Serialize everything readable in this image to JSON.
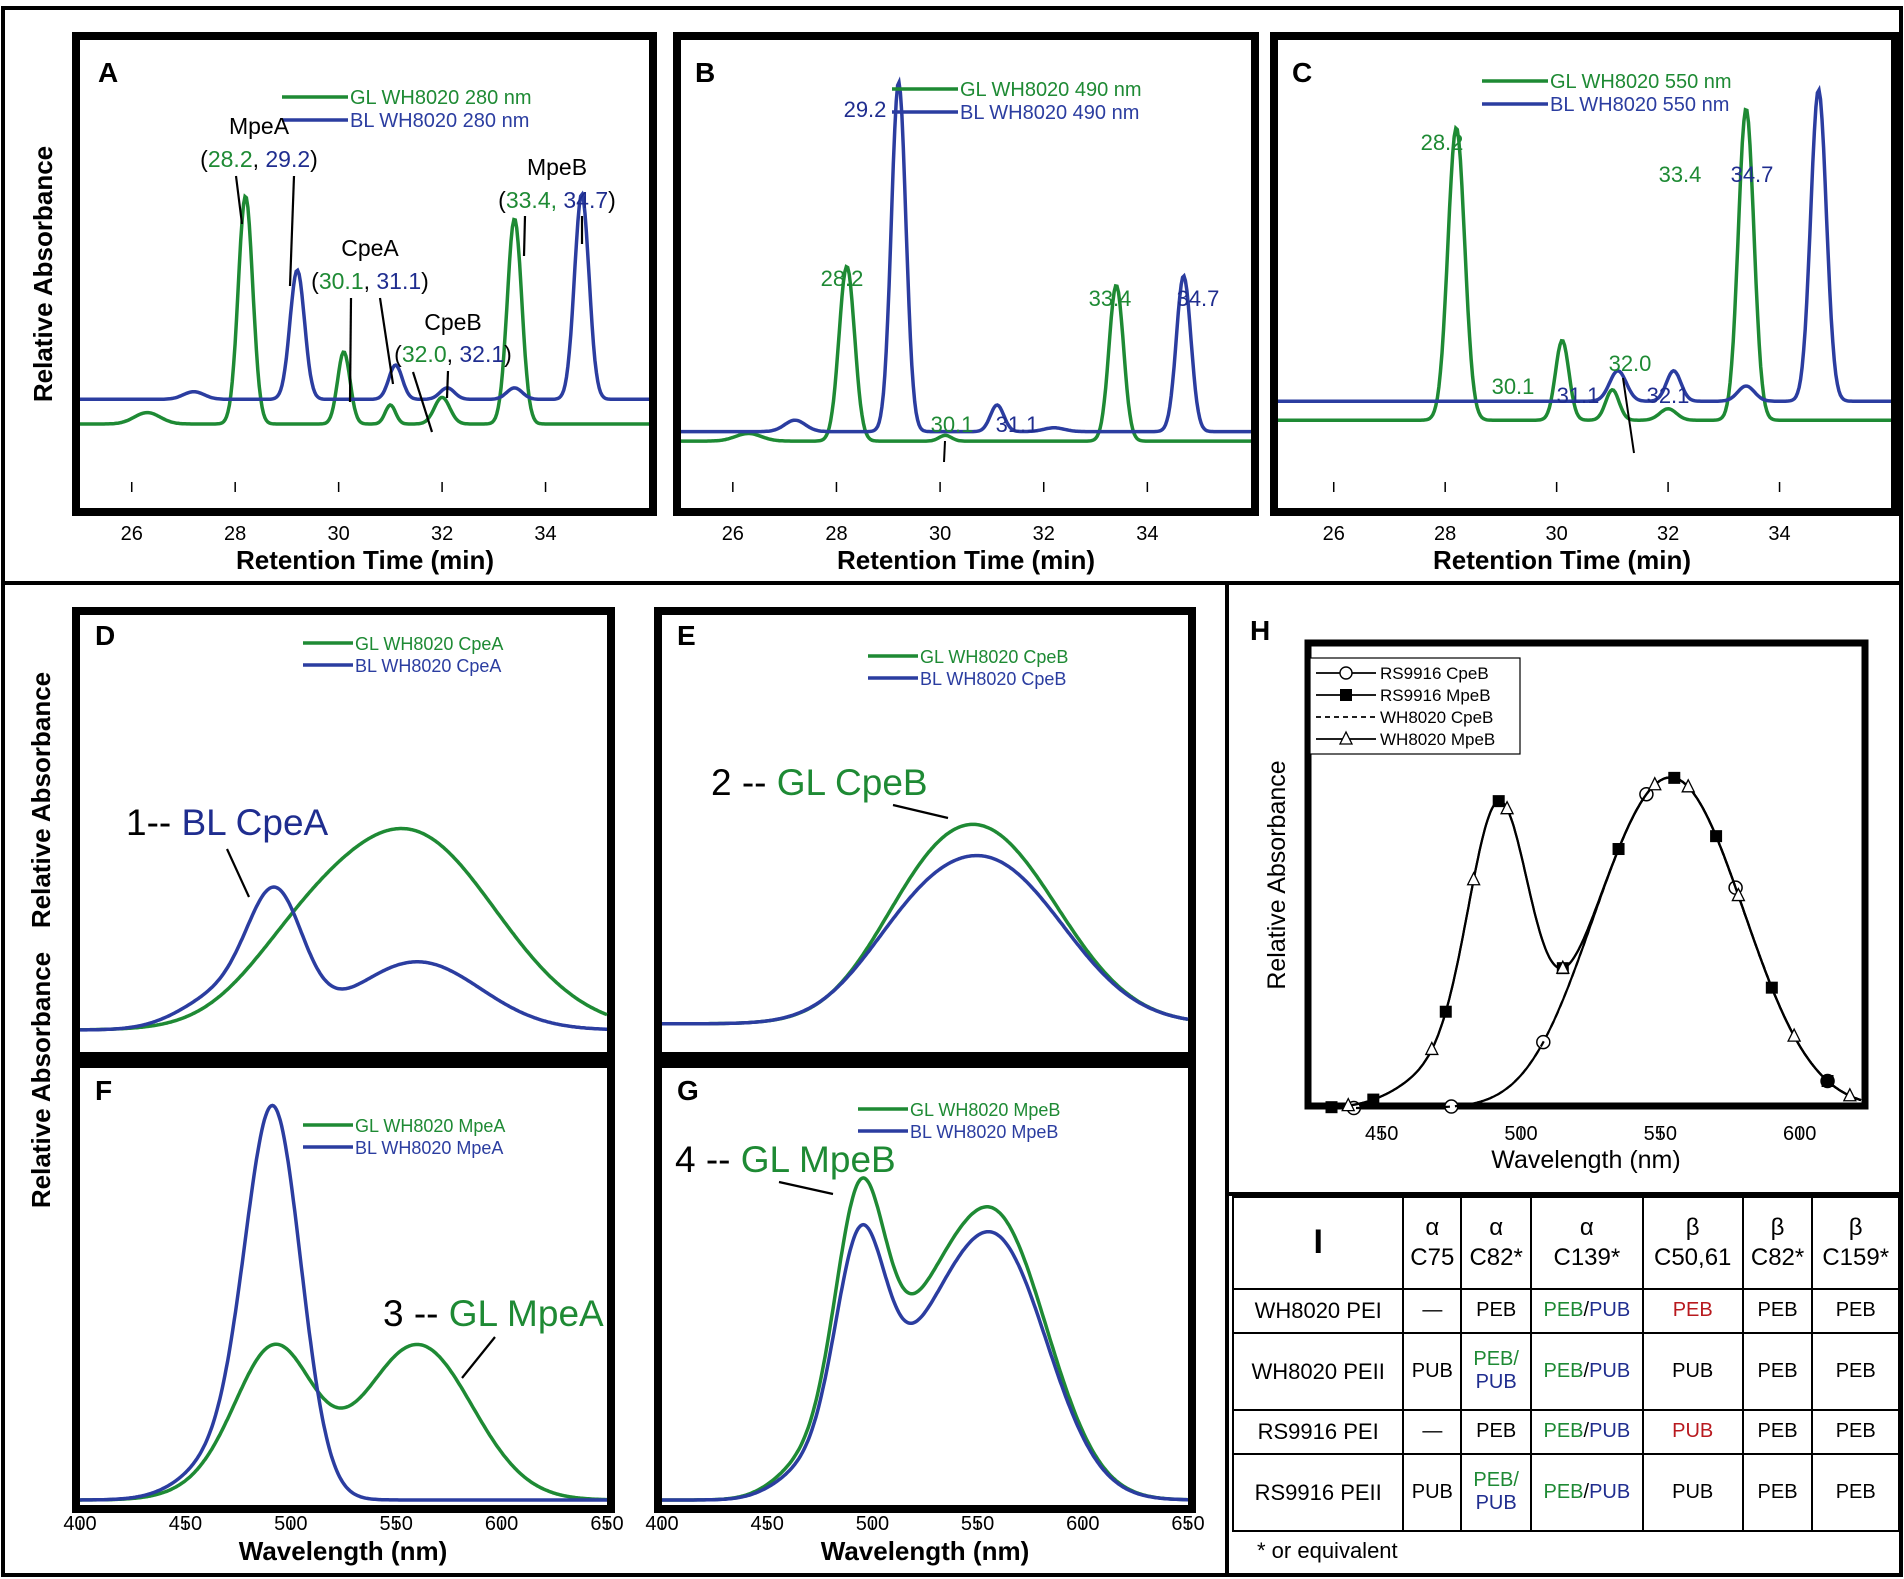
{
  "colors": {
    "gl": "#1e8a34",
    "bl": "#2b3da0",
    "label_blue": "#1f2d8f",
    "red": "#b8191e"
  },
  "chart_data": [
    {
      "panel": "A",
      "type": "line",
      "xlabel": "Retention Time (min)",
      "ylabel": "Relative Absorbance",
      "xlim": [
        25,
        36
      ],
      "xticks": [
        26,
        28,
        30,
        32,
        34
      ],
      "ylim": [
        0,
        1
      ],
      "series": [
        {
          "name": "GL WH8020 280 nm",
          "color": "gl",
          "baseline": 0.1,
          "peaks": [
            [
              26.3,
              0.03,
              0.25
            ],
            [
              28.2,
              0.6,
              0.14
            ],
            [
              30.1,
              0.19,
              0.12
            ],
            [
              31.0,
              0.05,
              0.1
            ],
            [
              32.0,
              0.07,
              0.15
            ],
            [
              33.4,
              0.54,
              0.14
            ]
          ]
        },
        {
          "name": "BL WH8020 280 nm",
          "color": "bl",
          "baseline": 0.165,
          "peaks": [
            [
              27.2,
              0.02,
              0.2
            ],
            [
              29.2,
              0.34,
              0.14
            ],
            [
              31.1,
              0.09,
              0.13
            ],
            [
              32.1,
              0.03,
              0.14
            ],
            [
              33.4,
              0.03,
              0.15
            ],
            [
              34.7,
              0.54,
              0.14
            ]
          ]
        }
      ],
      "annotations": [
        {
          "text": "MpeA",
          "vals": [
            "28.2",
            "29.2"
          ]
        },
        {
          "text": "CpeA",
          "vals": [
            "30.1",
            "31.1"
          ]
        },
        {
          "text": "CpeB",
          "vals": [
            "32.0",
            "32.1"
          ]
        },
        {
          "text": "MpeB",
          "vals": [
            "33.4,",
            "34.7"
          ]
        }
      ]
    },
    {
      "panel": "B",
      "type": "line",
      "xlabel": "Retention Time (min)",
      "ylabel": "",
      "xlim": [
        25,
        36
      ],
      "xticks": [
        26,
        28,
        30,
        32,
        34
      ],
      "ylim": [
        0,
        1
      ],
      "series": [
        {
          "name": "GL WH8020 490 nm",
          "color": "gl",
          "baseline": 0.055,
          "peaks": [
            [
              26.3,
              0.02,
              0.25
            ],
            [
              28.2,
              0.46,
              0.15
            ],
            [
              30.1,
              0.015,
              0.12
            ],
            [
              33.4,
              0.41,
              0.14
            ]
          ]
        },
        {
          "name": "BL WH8020 490 nm",
          "color": "bl",
          "baseline": 0.08,
          "peaks": [
            [
              27.2,
              0.03,
              0.2
            ],
            [
              29.2,
              0.92,
              0.14
            ],
            [
              31.1,
              0.07,
              0.13
            ],
            [
              32.2,
              0.01,
              0.2
            ],
            [
              34.7,
              0.41,
              0.14
            ]
          ]
        }
      ],
      "annotations": [
        "28.2",
        "29.2",
        "30.1",
        "31.1",
        "33.4",
        "34.7"
      ]
    },
    {
      "panel": "C",
      "type": "line",
      "xlabel": "Retention Time (min)",
      "ylabel": "",
      "xlim": [
        25,
        36
      ],
      "xticks": [
        26,
        28,
        30,
        32,
        34
      ],
      "ylim": [
        0,
        1
      ],
      "series": [
        {
          "name": "GL WH8020 550 nm",
          "color": "gl",
          "baseline": 0.11,
          "peaks": [
            [
              28.2,
              0.77,
              0.15
            ],
            [
              30.1,
              0.21,
              0.12
            ],
            [
              31.0,
              0.08,
              0.12
            ],
            [
              32.0,
              0.03,
              0.15
            ],
            [
              33.4,
              0.82,
              0.14
            ]
          ]
        },
        {
          "name": "BL WH8020 550 nm",
          "color": "bl",
          "baseline": 0.16,
          "peaks": [
            [
              31.1,
              0.08,
              0.15
            ],
            [
              32.1,
              0.08,
              0.13
            ],
            [
              33.4,
              0.04,
              0.15
            ],
            [
              34.7,
              0.82,
              0.14
            ]
          ]
        }
      ],
      "annotations": [
        "28.2",
        "30.1",
        "31.1",
        "32.0",
        "32.1",
        "33.4",
        "34.7"
      ]
    },
    {
      "panel": "D",
      "type": "line",
      "xlim": [
        400,
        650
      ],
      "ylim": [
        0,
        1
      ],
      "series": [
        {
          "name": "GL WH8020 CpeA",
          "color": "gl",
          "baseline": 0.0,
          "peaks": [
            [
              555,
              0.64,
              42
            ],
            [
              500,
              0.1,
              25
            ]
          ]
        },
        {
          "name": "BL WH8020 CpeA",
          "color": "bl",
          "baseline": 0.0,
          "peaks": [
            [
              493,
              0.38,
              13
            ],
            [
              470,
              0.12,
              20
            ],
            [
              560,
              0.22,
              30
            ]
          ]
        }
      ],
      "annotation": "1-- BL CpeA"
    },
    {
      "panel": "E",
      "type": "line",
      "xlim": [
        400,
        650
      ],
      "ylim": [
        0,
        1
      ],
      "series": [
        {
          "name": "GL WH8020 CpeB",
          "color": "gl",
          "baseline": 0.02,
          "peaks": [
            [
              555,
              0.58,
              35
            ],
            [
              520,
              0.14,
              25
            ]
          ]
        },
        {
          "name": "BL WH8020 CpeB",
          "color": "bl",
          "baseline": 0.02,
          "peaks": [
            [
              557,
              0.5,
              35
            ],
            [
              515,
              0.14,
              25
            ]
          ]
        }
      ],
      "annotation": "2 -- GL CpeB"
    },
    {
      "panel": "F",
      "type": "line",
      "xlabel": "Wavelength (nm)",
      "ylabel": "Relative Absorbance",
      "xlim": [
        400,
        650
      ],
      "xticks": [
        400,
        450,
        500,
        550,
        600,
        650
      ],
      "ylim": [
        0,
        1
      ],
      "series": [
        {
          "name": "GL WH8020 MpeA",
          "color": "gl",
          "baseline": 0.0,
          "peaks": [
            [
              493,
              0.38,
              18
            ],
            [
              560,
              0.42,
              26
            ],
            [
              470,
              0.05,
              20
            ]
          ]
        },
        {
          "name": "BL WH8020 MpeA",
          "color": "bl",
          "baseline": 0.0,
          "peaks": [
            [
              492,
              0.96,
              13
            ],
            [
              475,
              0.15,
              20
            ]
          ]
        }
      ],
      "annotation": "3 -- GL MpeA"
    },
    {
      "panel": "G",
      "type": "line",
      "xlabel": "Wavelength (nm)",
      "ylabel": "",
      "xlim": [
        400,
        650
      ],
      "xticks": [
        400,
        450,
        500,
        550,
        600,
        650
      ],
      "ylim": [
        0,
        1
      ],
      "series": [
        {
          "name": "GL WH8020 MpeB",
          "color": "gl",
          "baseline": 0.0,
          "peaks": [
            [
              494,
              0.72,
              12
            ],
            [
              558,
              0.76,
              25
            ],
            [
              520,
              0.25,
              18
            ],
            [
              470,
              0.1,
              15
            ]
          ]
        },
        {
          "name": "BL WH8020 MpeB",
          "color": "bl",
          "baseline": 0.0,
          "peaks": [
            [
              494,
              0.62,
              12
            ],
            [
              558,
              0.7,
              25
            ],
            [
              520,
              0.2,
              18
            ],
            [
              470,
              0.08,
              15
            ]
          ]
        }
      ],
      "annotation": "4 -- GL MpeB"
    },
    {
      "panel": "H",
      "type": "line",
      "xlabel": "Wavelength (nm)",
      "ylabel": "Relative Absorbance",
      "xlim": [
        425,
        622
      ],
      "xticks": [
        450,
        500,
        550,
        600
      ],
      "ylim": [
        0,
        1
      ],
      "series": [
        {
          "name": "RS9916 CpeB",
          "style": "open-circle",
          "baseline": 0.0,
          "peaks": [
            [
              557,
              0.96,
              24
            ],
            [
              530,
              0.18,
              18
            ]
          ]
        },
        {
          "name": "RS9916 MpeB",
          "style": "filled-square",
          "baseline": 0.0,
          "peaks": [
            [
              492,
              0.88,
              11
            ],
            [
              557,
              0.96,
              24
            ],
            [
              530,
              0.18,
              18
            ],
            [
              470,
              0.1,
              14
            ]
          ]
        },
        {
          "name": "WH8020 CpeB",
          "style": "dashed",
          "baseline": 0.0,
          "peaks": [
            [
              557,
              0.96,
              24
            ],
            [
              530,
              0.18,
              18
            ]
          ]
        },
        {
          "name": "WH8020 MpeB",
          "style": "open-triangle",
          "baseline": 0.0,
          "peaks": [
            [
              492,
              0.88,
              11
            ],
            [
              557,
              0.96,
              24
            ],
            [
              530,
              0.18,
              18
            ],
            [
              470,
              0.1,
              14
            ]
          ]
        }
      ]
    },
    {
      "panel": "I",
      "type": "table",
      "columns": [
        [
          "α",
          "C75"
        ],
        [
          "α",
          "C82*"
        ],
        [
          "α",
          "C139*"
        ],
        [
          "β",
          "C50,61"
        ],
        [
          "β",
          "C82*"
        ],
        [
          "β",
          "C159*"
        ]
      ],
      "rows": [
        {
          "label": "WH8020 PEI",
          "cells": [
            "—",
            "PEB",
            "PEB/PUB",
            "PEB",
            "PEB",
            "PEB"
          ]
        },
        {
          "label": "WH8020 PEII",
          "cells": [
            "PUB",
            "PEB/PUB",
            "PEB/PUB",
            "PUB",
            "PEB",
            "PEB"
          ]
        },
        {
          "label": "RS9916 PEI",
          "cells": [
            "—",
            "PEB",
            "PEB/PUB",
            "PUB",
            "PEB",
            "PEB"
          ]
        },
        {
          "label": "RS9916 PEII",
          "cells": [
            "PUB",
            "PEB/PUB",
            "PEB/PUB",
            "PUB",
            "PEB",
            "PEB"
          ]
        }
      ],
      "footnote": "* or equivalent"
    }
  ]
}
